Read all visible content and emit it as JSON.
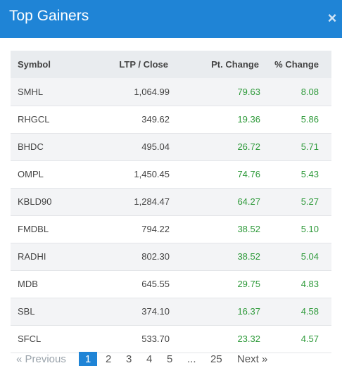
{
  "modal": {
    "title": "Top Gainers",
    "close_glyph": "×"
  },
  "table": {
    "headers": {
      "symbol": "Symbol",
      "ltp": "LTP / Close",
      "pt_change": "Pt. Change",
      "pct_change": "% Change"
    },
    "rows": [
      {
        "symbol": "SMHL",
        "ltp": "1,064.99",
        "pt_change": "79.63",
        "pct_change": "8.08"
      },
      {
        "symbol": "RHGCL",
        "ltp": "349.62",
        "pt_change": "19.36",
        "pct_change": "5.86"
      },
      {
        "symbol": "BHDC",
        "ltp": "495.04",
        "pt_change": "26.72",
        "pct_change": "5.71"
      },
      {
        "symbol": "OMPL",
        "ltp": "1,450.45",
        "pt_change": "74.76",
        "pct_change": "5.43"
      },
      {
        "symbol": "KBLD90",
        "ltp": "1,284.47",
        "pt_change": "64.27",
        "pct_change": "5.27"
      },
      {
        "symbol": "FMDBL",
        "ltp": "794.22",
        "pt_change": "38.52",
        "pct_change": "5.10"
      },
      {
        "symbol": "RADHI",
        "ltp": "802.30",
        "pt_change": "38.52",
        "pct_change": "5.04"
      },
      {
        "symbol": "MDB",
        "ltp": "645.55",
        "pt_change": "29.75",
        "pct_change": "4.83"
      },
      {
        "symbol": "SBL",
        "ltp": "374.10",
        "pt_change": "16.37",
        "pct_change": "4.58"
      },
      {
        "symbol": "SFCL",
        "ltp": "533.70",
        "pt_change": "23.32",
        "pct_change": "4.57"
      }
    ]
  },
  "pagination": {
    "previous": "« Previous",
    "pages": [
      "1",
      "2",
      "3",
      "4",
      "5",
      "...",
      "25"
    ],
    "active": "1",
    "next": "Next »"
  },
  "colors": {
    "header_bg": "#1f84d6",
    "positive": "#2e9a3a",
    "table_header_bg": "#e9ecef"
  }
}
